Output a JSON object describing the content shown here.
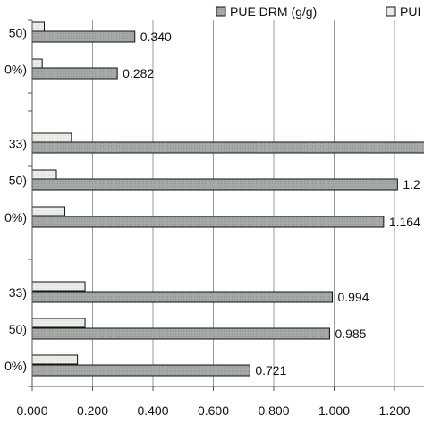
{
  "chart_data": {
    "type": "bar",
    "orientation": "horizontal",
    "grid": true,
    "legend_position": "top",
    "xlim": [
      0,
      1.3
    ],
    "x_ticks": [
      "0.000",
      "0.200",
      "0.400",
      "0.600",
      "0.800",
      "1.000",
      "1.200"
    ],
    "categories": [
      "50)",
      "0%)",
      "33)",
      "50)",
      "0%)",
      "33)",
      "50)",
      "0%)"
    ],
    "series": [
      {
        "name": "PUE DRM (g/g)",
        "color": "#a6aaa7",
        "values": [
          0.34,
          0.282,
          1.32,
          1.21,
          1.164,
          0.994,
          0.985,
          0.721
        ],
        "labels": [
          "0.340",
          "0.282",
          "",
          "1.2",
          "1.164",
          "0.994",
          "0.985",
          "0.721"
        ]
      },
      {
        "name": "PUI",
        "color": "#ebede8",
        "values": [
          0.04,
          0.033,
          0.13,
          0.08,
          0.108,
          0.175,
          0.175,
          0.15
        ],
        "labels": [
          "",
          "",
          "",
          "",
          "",
          "",
          "",
          ""
        ]
      }
    ]
  }
}
